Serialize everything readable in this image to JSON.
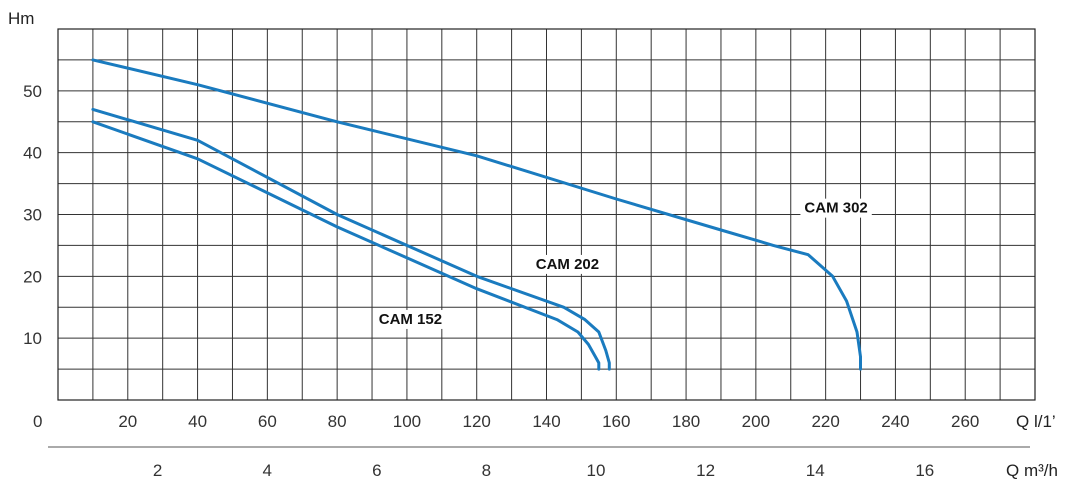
{
  "chart_data": {
    "type": "line",
    "title": "",
    "ylabel": "Hm",
    "xlabel": "Q l/1’",
    "xlabel_secondary": "Q m³/h",
    "xlim": [
      0,
      280
    ],
    "ylim": [
      0,
      60
    ],
    "x_ticks": [
      0,
      20,
      40,
      60,
      80,
      100,
      120,
      140,
      160,
      180,
      200,
      220,
      240,
      260
    ],
    "y_ticks": [
      10,
      20,
      30,
      40,
      50
    ],
    "x2_ticks": [
      2,
      4,
      6,
      8,
      10,
      12,
      14,
      16
    ],
    "grid": true,
    "line_color": "#1a7bbf",
    "series": [
      {
        "name": "CAM 302",
        "x": [
          10,
          40,
          80,
          120,
          160,
          190,
          205,
          215,
          222,
          226,
          229,
          230,
          230
        ],
        "y": [
          55,
          51,
          45,
          39.5,
          32.5,
          27.5,
          25,
          23.5,
          20,
          16,
          11,
          7,
          5
        ]
      },
      {
        "name": "CAM 202",
        "x": [
          10,
          40,
          80,
          120,
          145,
          151,
          155,
          157,
          158,
          158
        ],
        "y": [
          47,
          42,
          30,
          20,
          15,
          13,
          11,
          8,
          6,
          5
        ]
      },
      {
        "name": "CAM 152",
        "x": [
          10,
          40,
          80,
          120,
          143,
          149,
          152,
          154,
          155,
          155
        ],
        "y": [
          45,
          39,
          28,
          18,
          13,
          11,
          9,
          7,
          6,
          5
        ]
      }
    ]
  }
}
